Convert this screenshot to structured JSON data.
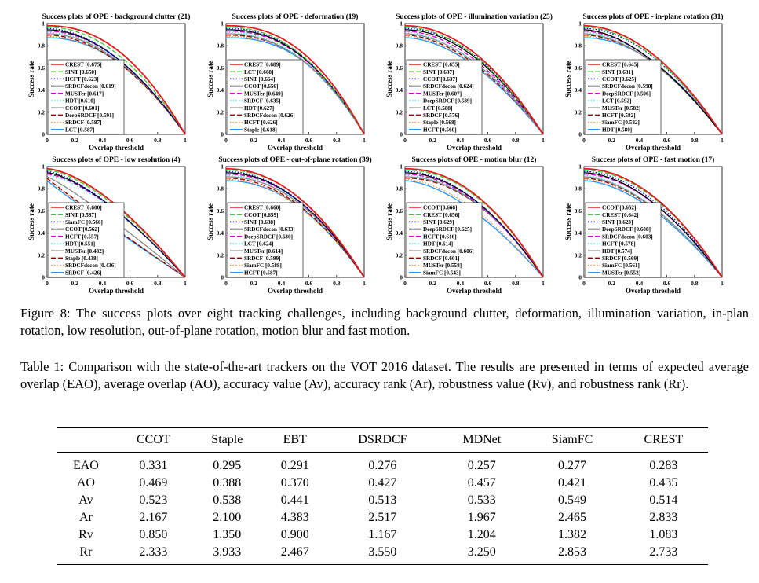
{
  "figure": {
    "caption": "Figure 8: The success plots over eight tracking challenges, including background clutter, deformation, illumination variation, in-plan rotation, low resolution, out-of-plane rotation, motion blur and fast motion."
  },
  "table": {
    "caption": "Table 1: Comparison with the state-of-the-art trackers on the VOT 2016 dataset. The results are presented in terms of expected average overlap (EAO), average overlap (AO), accuracy value (Av), accuracy rank (Ar), robustness value (Rv), and robustness rank (Rr).",
    "columns": [
      "",
      "CCOT",
      "Staple",
      "EBT",
      "DSRDCF",
      "MDNet",
      "SiamFC",
      "CREST"
    ],
    "rows": [
      [
        "EAO",
        "0.331",
        "0.295",
        "0.291",
        "0.276",
        "0.257",
        "0.277",
        "0.283"
      ],
      [
        "AO",
        "0.469",
        "0.388",
        "0.370",
        "0.427",
        "0.457",
        "0.421",
        "0.435"
      ],
      [
        "Av",
        "0.523",
        "0.538",
        "0.441",
        "0.513",
        "0.533",
        "0.549",
        "0.514"
      ],
      [
        "Ar",
        "2.167",
        "2.100",
        "4.383",
        "2.517",
        "1.967",
        "2.465",
        "2.833"
      ],
      [
        "Rv",
        "0.850",
        "1.350",
        "0.900",
        "1.167",
        "1.204",
        "1.382",
        "1.083"
      ],
      [
        "Rr",
        "2.333",
        "3.933",
        "2.467",
        "3.550",
        "3.250",
        "2.853",
        "2.733"
      ]
    ]
  },
  "styles": [
    {
      "color": "#e41a1c",
      "dash": "solid"
    },
    {
      "color": "#33cc33",
      "dash": "dashed"
    },
    {
      "color": "#0000cc",
      "dash": "dotted"
    },
    {
      "color": "#000000",
      "dash": "solid"
    },
    {
      "color": "#cc00cc",
      "dash": "dashed"
    },
    {
      "color": "#44ddff",
      "dash": "dotted"
    },
    {
      "color": "#888888",
      "dash": "solid"
    },
    {
      "color": "#8b0000",
      "dash": "dashed"
    },
    {
      "color": "#f08c30",
      "dash": "dotted"
    },
    {
      "color": "#1e90ff",
      "dash": "solid"
    }
  ],
  "chart_data": [
    {
      "type": "line",
      "title": "Success plots of OPE - background clutter (21)",
      "xlabel": "Overlap threshold",
      "ylabel": "Success rate",
      "xlim": [
        0,
        1
      ],
      "ylim": [
        0,
        1
      ],
      "xticks": [
        "0",
        "0.2",
        "0.4",
        "0.6",
        "0.8",
        "1"
      ],
      "yticks": [
        "0",
        "0.2",
        "0.4",
        "0.6",
        "0.8",
        "1"
      ],
      "series": [
        {
          "label": "CREST [0.675]",
          "auc": 0.675,
          "style": 0
        },
        {
          "label": "SINT [0.650]",
          "auc": 0.65,
          "style": 1
        },
        {
          "label": "HCFT [0.623]",
          "auc": 0.623,
          "style": 2
        },
        {
          "label": "SRDCFdecon [0.619]",
          "auc": 0.619,
          "style": 3
        },
        {
          "label": "MUSTer [0.617]",
          "auc": 0.617,
          "style": 4
        },
        {
          "label": "HDT [0.610]",
          "auc": 0.61,
          "style": 5
        },
        {
          "label": "CCOT [0.601]",
          "auc": 0.601,
          "style": 6
        },
        {
          "label": "DeepSRDCF [0.591]",
          "auc": 0.591,
          "style": 7
        },
        {
          "label": "SRDCF [0.587]",
          "auc": 0.587,
          "style": 8
        },
        {
          "label": "LCT [0.587]",
          "auc": 0.587,
          "style": 9
        }
      ]
    },
    {
      "type": "line",
      "title": "Success plots of OPE - deformation (19)",
      "xlabel": "Overlap threshold",
      "ylabel": "Success rate",
      "xlim": [
        0,
        1
      ],
      "ylim": [
        0,
        1
      ],
      "xticks": [
        "0",
        "0.2",
        "0.4",
        "0.6",
        "0.8",
        "1"
      ],
      "yticks": [
        "0",
        "0.2",
        "0.4",
        "0.6",
        "0.8",
        "1"
      ],
      "series": [
        {
          "label": "CREST [0.689]",
          "auc": 0.689,
          "style": 0
        },
        {
          "label": "LCT [0.668]",
          "auc": 0.668,
          "style": 1
        },
        {
          "label": "SINT [0.664]",
          "auc": 0.664,
          "style": 2
        },
        {
          "label": "CCOT [0.656]",
          "auc": 0.656,
          "style": 3
        },
        {
          "label": "MUSTer [0.649]",
          "auc": 0.649,
          "style": 4
        },
        {
          "label": "SRDCF [0.635]",
          "auc": 0.635,
          "style": 5
        },
        {
          "label": "HDT [0.627]",
          "auc": 0.627,
          "style": 6
        },
        {
          "label": "SRDCFdecon [0.626]",
          "auc": 0.626,
          "style": 7
        },
        {
          "label": "HCFT [0.626]",
          "auc": 0.626,
          "style": 8
        },
        {
          "label": "Staple [0.618]",
          "auc": 0.618,
          "style": 9
        }
      ]
    },
    {
      "type": "line",
      "title": "Success plots of OPE - illumination variation (25)",
      "xlabel": "Overlap threshold",
      "ylabel": "Success rate",
      "xlim": [
        0,
        1
      ],
      "ylim": [
        0,
        1
      ],
      "xticks": [
        "0",
        "0.2",
        "0.4",
        "0.6",
        "0.8",
        "1"
      ],
      "yticks": [
        "0",
        "0.2",
        "0.4",
        "0.6",
        "0.8",
        "1"
      ],
      "series": [
        {
          "label": "CREST [0.655]",
          "auc": 0.655,
          "style": 0
        },
        {
          "label": "SINT [0.637]",
          "auc": 0.637,
          "style": 1
        },
        {
          "label": "CCOT [0.637]",
          "auc": 0.637,
          "style": 2
        },
        {
          "label": "SRDCFdecon [0.624]",
          "auc": 0.624,
          "style": 3
        },
        {
          "label": "MUSTer [0.607]",
          "auc": 0.607,
          "style": 4
        },
        {
          "label": "DeepSRDCF [0.589]",
          "auc": 0.589,
          "style": 5
        },
        {
          "label": "LCT [0.588]",
          "auc": 0.588,
          "style": 6
        },
        {
          "label": "SRDCF [0.576]",
          "auc": 0.576,
          "style": 7
        },
        {
          "label": "Staple [0.568]",
          "auc": 0.568,
          "style": 8
        },
        {
          "label": "HCFT [0.560]",
          "auc": 0.56,
          "style": 9
        }
      ]
    },
    {
      "type": "line",
      "title": "Success plots of OPE - in-plane rotation (31)",
      "xlabel": "Overlap threshold",
      "ylabel": "Success rate",
      "xlim": [
        0,
        1
      ],
      "ylim": [
        0,
        1
      ],
      "xticks": [
        "0",
        "0.2",
        "0.4",
        "0.6",
        "0.8",
        "1"
      ],
      "yticks": [
        "0",
        "0.2",
        "0.4",
        "0.6",
        "0.8",
        "1"
      ],
      "series": [
        {
          "label": "CREST [0.645]",
          "auc": 0.645,
          "style": 0
        },
        {
          "label": "SINT [0.631]",
          "auc": 0.631,
          "style": 1
        },
        {
          "label": "CCOT [0.625]",
          "auc": 0.625,
          "style": 2
        },
        {
          "label": "SRDCFdecon [0.598]",
          "auc": 0.598,
          "style": 3
        },
        {
          "label": "DeepSRDCF [0.596]",
          "auc": 0.596,
          "style": 4
        },
        {
          "label": "LCT [0.592]",
          "auc": 0.592,
          "style": 5
        },
        {
          "label": "MUSTer [0.582]",
          "auc": 0.582,
          "style": 6
        },
        {
          "label": "HCFT [0.582]",
          "auc": 0.582,
          "style": 7
        },
        {
          "label": "SiamFC [0.582]",
          "auc": 0.582,
          "style": 8
        },
        {
          "label": "HDT [0.580]",
          "auc": 0.58,
          "style": 9
        }
      ]
    },
    {
      "type": "line",
      "title": "Success plots of OPE - low resolution (4)",
      "xlabel": "Overlap threshold",
      "ylabel": "Success rate",
      "xlim": [
        0,
        1
      ],
      "ylim": [
        0,
        1
      ],
      "xticks": [
        "0",
        "0.2",
        "0.4",
        "0.6",
        "0.8",
        "1"
      ],
      "yticks": [
        "0",
        "0.2",
        "0.4",
        "0.6",
        "0.8",
        "1"
      ],
      "series": [
        {
          "label": "CREST [0.600]",
          "auc": 0.6,
          "style": 0
        },
        {
          "label": "SINT [0.587]",
          "auc": 0.587,
          "style": 1
        },
        {
          "label": "SiamFC [0.566]",
          "auc": 0.566,
          "style": 2
        },
        {
          "label": "CCOT [0.562]",
          "auc": 0.562,
          "style": 3
        },
        {
          "label": "HCFT [0.557]",
          "auc": 0.557,
          "style": 4
        },
        {
          "label": "HDT [0.551]",
          "auc": 0.551,
          "style": 5
        },
        {
          "label": "MUSTer [0.482]",
          "auc": 0.482,
          "style": 6
        },
        {
          "label": "Staple [0.438]",
          "auc": 0.438,
          "style": 7
        },
        {
          "label": "SRDCFdecon [0.436]",
          "auc": 0.436,
          "style": 8
        },
        {
          "label": "SRDCF [0.426]",
          "auc": 0.426,
          "style": 9
        }
      ]
    },
    {
      "type": "line",
      "title": "Success plots of OPE - out-of-plane rotation (39)",
      "xlabel": "Overlap threshold",
      "ylabel": "Success rate",
      "xlim": [
        0,
        1
      ],
      "ylim": [
        0,
        1
      ],
      "xticks": [
        "0",
        "0.2",
        "0.4",
        "0.6",
        "0.8",
        "1"
      ],
      "yticks": [
        "0",
        "0.2",
        "0.4",
        "0.6",
        "0.8",
        "1"
      ],
      "series": [
        {
          "label": "CREST [0.660]",
          "auc": 0.66,
          "style": 0
        },
        {
          "label": "CCOT [0.659]",
          "auc": 0.659,
          "style": 1
        },
        {
          "label": "SINT [0.638]",
          "auc": 0.638,
          "style": 2
        },
        {
          "label": "SRDCFdecon [0.633]",
          "auc": 0.633,
          "style": 3
        },
        {
          "label": "DeepSRDCF [0.630]",
          "auc": 0.63,
          "style": 4
        },
        {
          "label": "LCT [0.624]",
          "auc": 0.624,
          "style": 5
        },
        {
          "label": "MUSTer [0.614]",
          "auc": 0.614,
          "style": 6
        },
        {
          "label": "SRDCF [0.599]",
          "auc": 0.599,
          "style": 7
        },
        {
          "label": "SiamFC [0.588]",
          "auc": 0.588,
          "style": 8
        },
        {
          "label": "HCFT [0.587]",
          "auc": 0.587,
          "style": 9
        }
      ]
    },
    {
      "type": "line",
      "title": "Success plots of OPE - motion blur (12)",
      "xlabel": "Overlap threshold",
      "ylabel": "Success rate",
      "xlim": [
        0,
        1
      ],
      "ylim": [
        0,
        1
      ],
      "xticks": [
        "0",
        "0.2",
        "0.4",
        "0.6",
        "0.8",
        "1"
      ],
      "yticks": [
        "0",
        "0.2",
        "0.4",
        "0.6",
        "0.8",
        "1"
      ],
      "series": [
        {
          "label": "CCOT [0.666]",
          "auc": 0.666,
          "style": 0
        },
        {
          "label": "CREST [0.656]",
          "auc": 0.656,
          "style": 1
        },
        {
          "label": "SINT [0.629]",
          "auc": 0.629,
          "style": 2
        },
        {
          "label": "DeepSRDCF [0.625]",
          "auc": 0.625,
          "style": 3
        },
        {
          "label": "HCFT [0.616]",
          "auc": 0.616,
          "style": 4
        },
        {
          "label": "HDT [0.614]",
          "auc": 0.614,
          "style": 5
        },
        {
          "label": "SRDCFdecon [0.606]",
          "auc": 0.606,
          "style": 6
        },
        {
          "label": "SRDCF [0.601]",
          "auc": 0.601,
          "style": 7
        },
        {
          "label": "MUSTer [0.558]",
          "auc": 0.558,
          "style": 8
        },
        {
          "label": "SiamFC [0.543]",
          "auc": 0.543,
          "style": 9
        }
      ]
    },
    {
      "type": "line",
      "title": "Success plots of OPE - fast motion (17)",
      "xlabel": "Overlap threshold",
      "ylabel": "Success rate",
      "xlim": [
        0,
        1
      ],
      "ylim": [
        0,
        1
      ],
      "xticks": [
        "0",
        "0.2",
        "0.4",
        "0.6",
        "0.8",
        "1"
      ],
      "yticks": [
        "0",
        "0.2",
        "0.4",
        "0.6",
        "0.8",
        "1"
      ],
      "series": [
        {
          "label": "CCOT [0.652]",
          "auc": 0.652,
          "style": 0
        },
        {
          "label": "CREST [0.642]",
          "auc": 0.642,
          "style": 1
        },
        {
          "label": "SINT [0.623]",
          "auc": 0.623,
          "style": 2
        },
        {
          "label": "DeepSRDCF [0.608]",
          "auc": 0.608,
          "style": 3
        },
        {
          "label": "SRDCFdecon [0.603]",
          "auc": 0.603,
          "style": 4
        },
        {
          "label": "HCFT [0.578]",
          "auc": 0.578,
          "style": 5
        },
        {
          "label": "HDT [0.574]",
          "auc": 0.574,
          "style": 6
        },
        {
          "label": "SRDCF [0.569]",
          "auc": 0.569,
          "style": 7
        },
        {
          "label": "SiamFC [0.561]",
          "auc": 0.561,
          "style": 8
        },
        {
          "label": "MUSTer [0.552]",
          "auc": 0.552,
          "style": 9
        }
      ]
    }
  ]
}
